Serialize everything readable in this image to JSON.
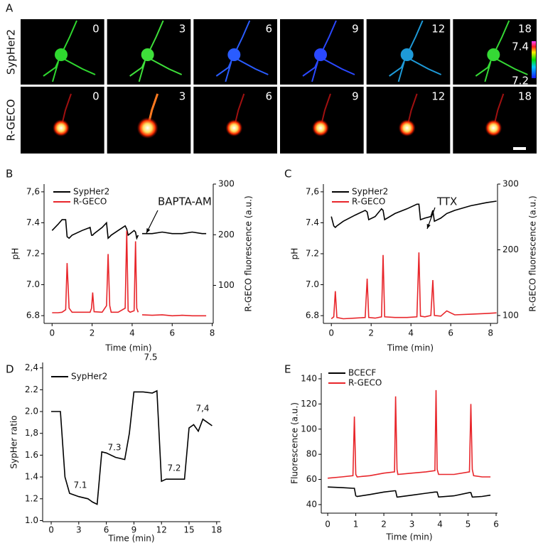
{
  "panel_a": {
    "label": "A",
    "rows": [
      "SypHer2",
      "R-GECO"
    ],
    "times": [
      "0",
      "3",
      "6",
      "9",
      "12",
      "18"
    ],
    "colorbar_labels": [
      "7.4",
      "7.2"
    ]
  },
  "chart_data": [
    {
      "type": "line",
      "panel_label": "B",
      "x_label": "Time (min)",
      "y_label": "pH",
      "y2_label": "R-GECO fluorescence (a.u.)",
      "annotations": [
        "BAPTA-AM"
      ],
      "xlim": [
        -0.4,
        8.05
      ],
      "xticks": [
        0,
        2,
        4,
        6,
        8
      ],
      "ylim": [
        6.75,
        7.65
      ],
      "yticks": [
        6.8,
        {
          "value": 7,
          "label": "7.0"
        },
        7.2,
        7.4,
        {
          "value": 7.6,
          "label": "7,6"
        }
      ],
      "y2lim": [
        25,
        300
      ],
      "y2ticks": [
        100,
        200,
        300
      ],
      "x": [
        0,
        0.3,
        0.5,
        0.68,
        0.75,
        0.85,
        1.0,
        1.5,
        1.9,
        1.97,
        2.03,
        2.1,
        2.5,
        2.72,
        2.8,
        2.88,
        2.95,
        3.3,
        3.65,
        3.73,
        3.8,
        3.9,
        4.1,
        4.17,
        4.23,
        4.3,
        4.4,
        4.5,
        5,
        5.5,
        6,
        6.5,
        7,
        7.5,
        7.7
      ],
      "series": [
        {
          "name": "SypHer2",
          "color": "#000000",
          "values": [
            7.35,
            7.39,
            7.42,
            7.42,
            7.31,
            7.3,
            7.32,
            7.35,
            7.37,
            7.32,
            7.32,
            7.33,
            7.37,
            7.4,
            7.3,
            7.31,
            7.32,
            7.35,
            7.38,
            7.36,
            7.32,
            7.33,
            7.35,
            7.34,
            7.3,
            7.32,
            null,
            7.33,
            7.33,
            7.34,
            7.33,
            7.33,
            7.34,
            7.33,
            7.33
          ]
        },
        {
          "name": "R-GECO",
          "color": "#e8262b",
          "axis": "y2",
          "values": [
            46,
            46,
            47,
            52,
            144,
            55,
            47,
            47,
            47,
            55,
            86,
            48,
            47,
            60,
            162,
            60,
            47,
            47,
            55,
            208,
            50,
            47,
            50,
            187,
            55,
            47,
            null,
            42,
            41,
            42,
            40,
            41,
            40,
            40,
            40
          ]
        }
      ]
    },
    {
      "type": "line",
      "panel_label": "C",
      "x_label": "Time (min)",
      "y_label": "pH",
      "y2_label": "R-GECO fluorescence (a.u.)",
      "annotations": [
        "TTX"
      ],
      "xlim": [
        -0.4,
        8.35
      ],
      "xticks": [
        0,
        2,
        4,
        6,
        8
      ],
      "ylim": [
        6.75,
        7.65
      ],
      "yticks": [
        6.8,
        {
          "value": 7,
          "label": "7.0"
        },
        7.2,
        7.4,
        {
          "value": 7.6,
          "label": "7,6"
        }
      ],
      "y2lim": [
        88,
        300
      ],
      "y2ticks": [
        100,
        200,
        300
      ],
      "x": [
        0,
        0.12,
        0.2,
        0.28,
        0.6,
        1.2,
        1.7,
        1.8,
        1.88,
        2.2,
        2.52,
        2.6,
        2.68,
        3.2,
        3.8,
        4.3,
        4.4,
        4.48,
        4.7,
        5.0,
        5.1,
        5.18,
        5.5,
        5.8,
        6.2,
        7.0,
        7.8,
        8.3
      ],
      "series": [
        {
          "name": "SypHer2",
          "color": "#000000",
          "values": [
            7.44,
            7.38,
            7.37,
            7.38,
            7.41,
            7.45,
            7.48,
            7.47,
            7.42,
            7.44,
            7.49,
            7.48,
            7.42,
            7.46,
            7.49,
            7.52,
            7.52,
            7.42,
            7.43,
            7.44,
            7.48,
            7.41,
            7.43,
            7.46,
            7.48,
            7.51,
            7.53,
            7.54
          ]
        },
        {
          "name": "R-GECO",
          "color": "#e8262b",
          "axis": "y2",
          "values": [
            95,
            98,
            137,
            97,
            95,
            96,
            97,
            156,
            97,
            96,
            98,
            192,
            98,
            97,
            97,
            98,
            196,
            99,
            98,
            100,
            154,
            100,
            99,
            107,
            101,
            102,
            103,
            104
          ]
        }
      ]
    },
    {
      "type": "line",
      "panel_label": "D",
      "x_label": "Time (min)",
      "y_label": "SypHer ratio",
      "annotations": [
        "7.1",
        "7.3",
        "7.5",
        "7.2",
        "7,4"
      ],
      "xlim": [
        -0.93,
        18.4
      ],
      "xticks": [
        0,
        3,
        6,
        9,
        12,
        15,
        18
      ],
      "ylim": [
        0.99,
        2.45
      ],
      "yticks": [
        {
          "value": 1,
          "label": "1.0"
        },
        1.2,
        1.4,
        1.6,
        {
          "value": 1.8,
          "label": "1,8"
        },
        {
          "value": 2,
          "label": "2.0"
        },
        2.2,
        {
          "value": 2.4,
          "label": "2,4"
        }
      ],
      "x": [
        0,
        1,
        1.5,
        2,
        3,
        4,
        4.5,
        5,
        5.5,
        6,
        7,
        8,
        8.5,
        9,
        10,
        11,
        11.5,
        12,
        12.5,
        13.5,
        14.5,
        15,
        15.5,
        16,
        16.5,
        17.5
      ],
      "series": [
        {
          "name": "SypHer2",
          "color": "#000000",
          "values": [
            2.0,
            2.0,
            1.4,
            1.25,
            1.22,
            1.2,
            1.17,
            1.15,
            1.63,
            1.62,
            1.58,
            1.56,
            1.8,
            2.18,
            2.18,
            2.17,
            2.19,
            1.36,
            1.38,
            1.38,
            1.38,
            1.85,
            1.88,
            1.82,
            1.93,
            1.87
          ]
        }
      ]
    },
    {
      "type": "line",
      "panel_label": "E",
      "x_label": "Time (min)",
      "y_label": "Fluorescence (a.u.)",
      "xlim": [
        -0.23,
        6.05
      ],
      "xticks": [
        0,
        1,
        2,
        3,
        4,
        5,
        6
      ],
      "ylim": [
        33.2,
        144.5
      ],
      "yticks": [
        40,
        60,
        80,
        100,
        120,
        140
      ],
      "x": [
        0,
        0.5,
        0.9,
        0.95,
        1.0,
        1.05,
        1.5,
        2.0,
        2.38,
        2.42,
        2.47,
        2.5,
        3.0,
        3.5,
        3.82,
        3.86,
        3.9,
        3.95,
        4.5,
        5.05,
        5.1,
        5.15,
        5.2,
        5.5,
        5.8
      ],
      "series": [
        {
          "name": "BCECF",
          "color": "#000000",
          "values": [
            54,
            53.5,
            53,
            53,
            47,
            46.5,
            48,
            50,
            51,
            51,
            46,
            46,
            47.5,
            49,
            50,
            50,
            50,
            46,
            47,
            49.5,
            49.5,
            46,
            46,
            46.5,
            47.5
          ]
        },
        {
          "name": "R-GECO",
          "color": "#e8262b",
          "values": [
            61,
            62,
            63,
            110,
            64,
            62,
            63,
            65,
            66,
            126,
            68,
            64,
            65,
            66,
            67,
            131,
            68,
            64,
            64,
            66,
            120,
            68,
            63,
            62,
            62
          ]
        }
      ]
    }
  ]
}
